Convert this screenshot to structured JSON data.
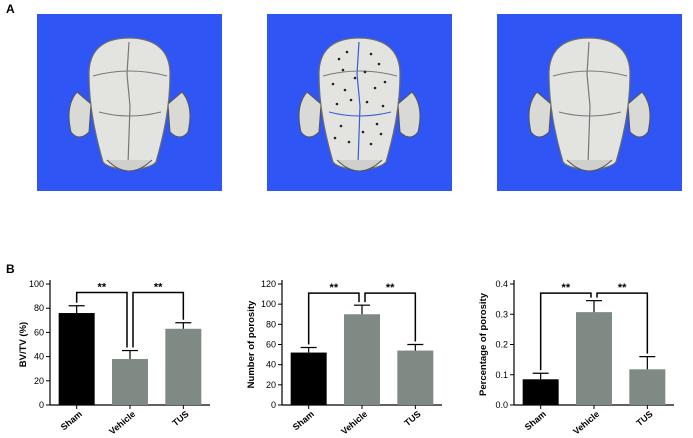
{
  "panels": {
    "a": "A",
    "b": "B"
  },
  "scans": [
    {
      "name": "sham-skull-scan",
      "porous": false
    },
    {
      "name": "vehicle-skull-scan",
      "porous": true
    },
    {
      "name": "tus-skull-scan",
      "porous": false
    }
  ],
  "colors": {
    "background_blue": "#2f55f4",
    "sham": "#000000",
    "vehicle": "#808a84",
    "tus": "#808a84"
  },
  "chart_data": [
    {
      "type": "bar",
      "categories": [
        "Sham",
        "Vehicle",
        "TUS"
      ],
      "values": [
        76,
        38,
        63
      ],
      "errors": [
        6,
        7,
        5
      ],
      "ylabel": "BV/TV (%)",
      "ylim": [
        0,
        100
      ],
      "yticks": [
        "0",
        "20",
        "40",
        "60",
        "80",
        "100"
      ],
      "significance": [
        {
          "from": 0,
          "to": 1,
          "label": "**",
          "y": 93
        },
        {
          "from": 1,
          "to": 2,
          "label": "**",
          "y": 93
        }
      ]
    },
    {
      "type": "bar",
      "categories": [
        "Sham",
        "Vehicle",
        "TUS"
      ],
      "values": [
        52,
        90,
        54
      ],
      "errors": [
        5,
        9,
        6
      ],
      "ylabel": "Number of porosity",
      "ylim": [
        0,
        120
      ],
      "yticks": [
        "0",
        "20",
        "40",
        "60",
        "80",
        "100",
        "120"
      ],
      "significance": [
        {
          "from": 0,
          "to": 1,
          "label": "**",
          "y": 111
        },
        {
          "from": 1,
          "to": 2,
          "label": "**",
          "y": 111
        }
      ]
    },
    {
      "type": "bar",
      "categories": [
        "Sham",
        "Vehicle",
        "TUS"
      ],
      "values": [
        0.085,
        0.307,
        0.118
      ],
      "errors": [
        0.02,
        0.038,
        0.042
      ],
      "ylabel": "Percentage of porosity",
      "ylim": [
        0,
        0.4
      ],
      "yticks": [
        "0.0",
        "0.1",
        "0.2",
        "0.3",
        "0.4"
      ],
      "significance": [
        {
          "from": 0,
          "to": 1,
          "label": "**",
          "y": 0.37
        },
        {
          "from": 1,
          "to": 2,
          "label": "**",
          "y": 0.37
        }
      ]
    }
  ]
}
